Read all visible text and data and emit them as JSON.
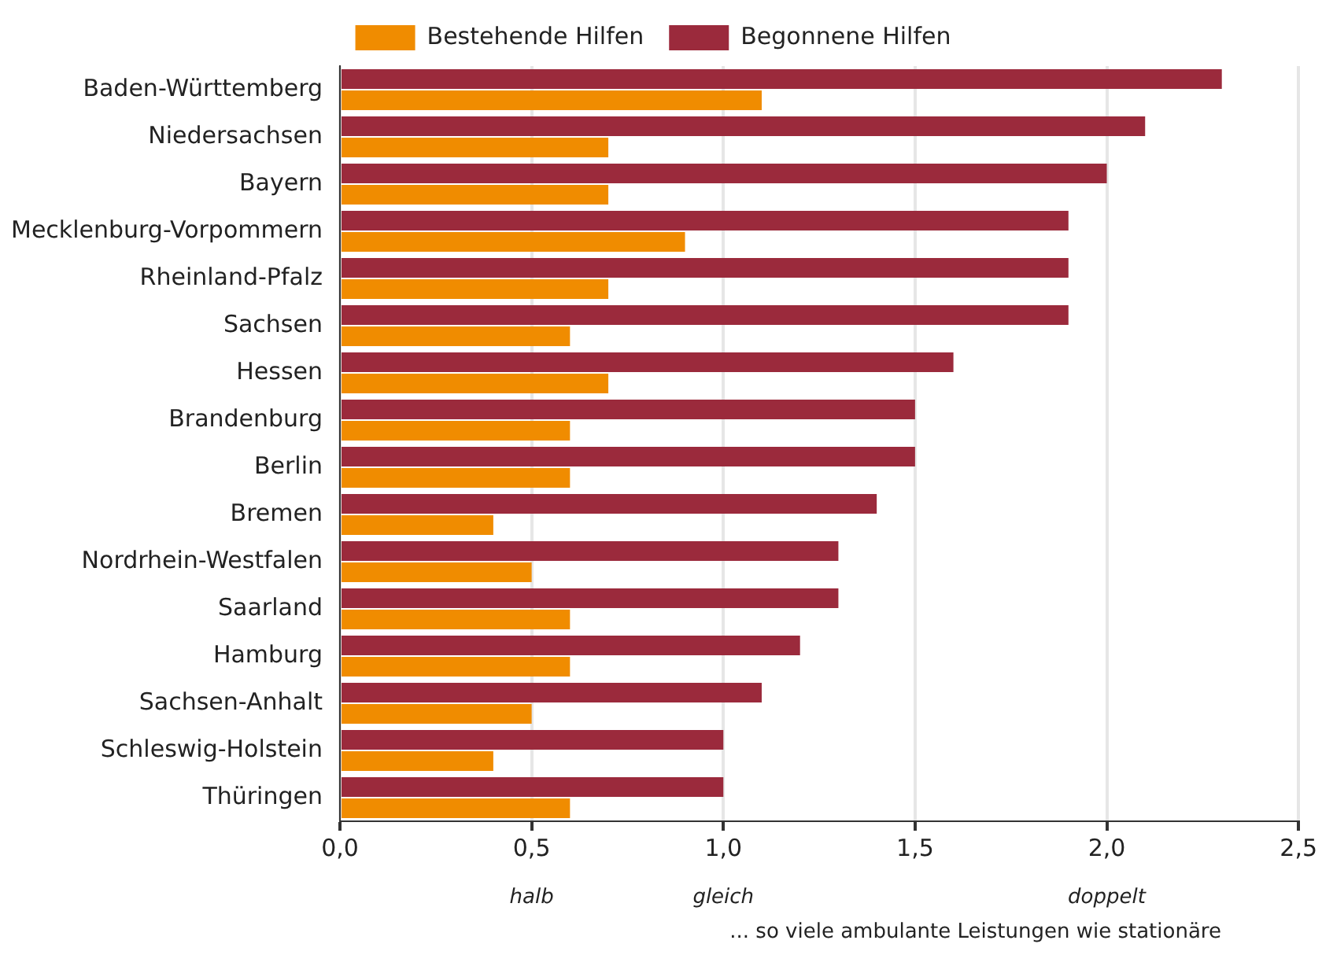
{
  "chart_data": {
    "type": "bar",
    "orientation": "horizontal",
    "categories": [
      "Baden-Württemberg",
      "Niedersachsen",
      "Bayern",
      "Mecklenburg-Vorpommern",
      "Rheinland-Pfalz",
      "Sachsen",
      "Hessen",
      "Brandenburg",
      "Berlin",
      "Bremen",
      "Nordrhein-Westfalen",
      "Saarland",
      "Hamburg",
      "Sachsen-Anhalt",
      "Schleswig-Holstein",
      "Thüringen"
    ],
    "series": [
      {
        "name": "Begonnene Hilfen",
        "color": "#9b2a3c",
        "values": [
          2.3,
          2.1,
          2.0,
          1.9,
          1.9,
          1.9,
          1.6,
          1.5,
          1.5,
          1.4,
          1.3,
          1.3,
          1.2,
          1.1,
          1.0,
          1.0
        ]
      },
      {
        "name": "Bestehende Hilfen",
        "color": "#f08c00",
        "values": [
          1.1,
          0.7,
          0.7,
          0.9,
          0.7,
          0.6,
          0.7,
          0.6,
          0.6,
          0.4,
          0.5,
          0.6,
          0.6,
          0.5,
          0.4,
          0.6
        ]
      }
    ],
    "xlim": [
      0,
      2.5
    ],
    "xticks": [
      {
        "value": 0,
        "label": "0,0"
      },
      {
        "value": 0.5,
        "label": "0,5"
      },
      {
        "value": 1,
        "label": "1,0"
      },
      {
        "value": 1.5,
        "label": "1,5"
      },
      {
        "value": 2,
        "label": "2,0"
      },
      {
        "value": 2.5,
        "label": "2,5"
      }
    ],
    "xlabel": "... so viele ambulante Leistungen wie stationäre",
    "annotations": [
      "halb",
      "gleich",
      "doppelt"
    ],
    "grid": "x",
    "legend": "top"
  }
}
